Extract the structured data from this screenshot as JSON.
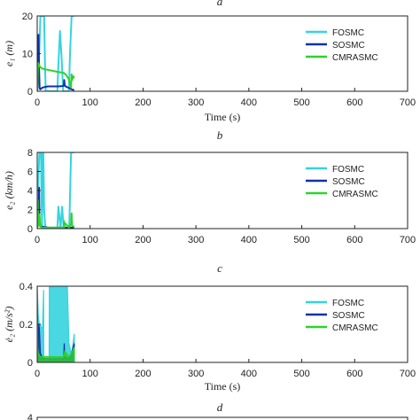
{
  "panel_labels": [
    "a",
    "b",
    "c",
    "d"
  ],
  "legend_labels": [
    "FOSMC",
    "SOSMC",
    "CMRASMC"
  ],
  "colors": {
    "FOSMC": "#35d3df",
    "SOSMC": "#1530a8",
    "CMRASMC": "#2fd22a"
  },
  "chart_data": [
    {
      "type": "line",
      "panel": "a",
      "xlabel": "Time (s)",
      "ylabel": "e₁ (m)",
      "xlim": [
        0,
        7000
      ],
      "ylim": [
        0,
        20
      ],
      "xticks": [
        "0",
        "100",
        "200",
        "300",
        "400",
        "500",
        "600",
        "700"
      ],
      "yticks": [
        "0",
        "10",
        "20"
      ],
      "series": [
        {
          "name": "FOSMC",
          "x": [
            0,
            20,
            40,
            60,
            80,
            100,
            130,
            145,
            160,
            200,
            250,
            300,
            350,
            380,
            400,
            430,
            460,
            490,
            520,
            550,
            580,
            600,
            620,
            650,
            680,
            700
          ],
          "y": [
            0,
            4,
            11,
            20,
            20,
            20,
            20,
            8,
            0,
            0,
            0,
            0,
            0,
            0,
            7,
            16,
            9,
            0,
            0,
            0,
            0,
            0,
            10,
            20,
            20,
            20
          ]
        },
        {
          "name": "SOSMC",
          "x": [
            0,
            10,
            20,
            25,
            35,
            45,
            55,
            100,
            200,
            300,
            400,
            500,
            510,
            520,
            550,
            600,
            650,
            700
          ],
          "y": [
            0,
            3,
            10,
            15,
            6,
            1,
            0.5,
            1,
            1.3,
            1.3,
            1.3,
            1.4,
            3,
            1.5,
            1.2,
            0.9,
            0.5,
            0.3
          ]
        },
        {
          "name": "CMRASMC",
          "x": [
            0,
            5,
            10,
            20,
            50,
            100,
            200,
            300,
            400,
            500,
            550,
            600,
            620,
            640,
            650,
            660,
            680,
            700
          ],
          "y": [
            0,
            2,
            5,
            7.5,
            6.5,
            6,
            5.7,
            5.4,
            5.1,
            4.9,
            4.3,
            3.1,
            2,
            1,
            4.5,
            3,
            4,
            3.5
          ]
        }
      ]
    },
    {
      "type": "line",
      "panel": "b",
      "xlabel": "",
      "ylabel": "e₂ (km/h)",
      "xlim": [
        0,
        7000
      ],
      "ylim": [
        0,
        8
      ],
      "xticks": [
        "0",
        "100",
        "200",
        "300",
        "400",
        "500",
        "600",
        "700"
      ],
      "yticks": [
        "0",
        "2",
        "4",
        "6",
        "8"
      ],
      "series": [
        {
          "name": "FOSMC",
          "x": [
            0,
            10,
            20,
            40,
            60,
            70,
            90,
            105,
            115,
            130,
            150,
            200,
            300,
            380,
            400,
            420,
            440,
            470,
            500,
            600,
            610,
            640,
            680,
            700
          ],
          "y": [
            0,
            2,
            5,
            8,
            8,
            8,
            0,
            8,
            8,
            2,
            0.3,
            0,
            0,
            0,
            2.3,
            1.2,
            0,
            2.3,
            0,
            0,
            1,
            8,
            8,
            8
          ]
        },
        {
          "name": "SOSMC",
          "x": [
            0,
            10,
            20,
            28,
            36,
            44,
            52,
            60,
            100,
            200,
            300,
            400,
            500,
            600,
            700
          ],
          "y": [
            0,
            1.5,
            3,
            1,
            4.3,
            1,
            0.5,
            0.2,
            0.2,
            0.1,
            0.1,
            0.1,
            0.1,
            0.1,
            0.1
          ]
        },
        {
          "name": "CMRASMC",
          "x": [
            0,
            5,
            10,
            18,
            26,
            34,
            42,
            60,
            100,
            200,
            300,
            400,
            500,
            505,
            510,
            520,
            600,
            640,
            650,
            660,
            700
          ],
          "y": [
            0,
            1.5,
            3,
            0.5,
            1.5,
            0.3,
            1.5,
            0.2,
            0.1,
            0.1,
            0.1,
            0.1,
            0.1,
            0.8,
            0.1,
            0.6,
            0.1,
            0.5,
            1.6,
            0.3,
            0.2
          ]
        }
      ]
    },
    {
      "type": "area",
      "panel": "c",
      "xlabel": "Time (s)",
      "ylabel": "ė₂ (m/s²)",
      "xlim": [
        0,
        7000
      ],
      "ylim": [
        0,
        0.4
      ],
      "xticks": [
        "0",
        "100",
        "200",
        "300",
        "400",
        "500",
        "600",
        "700"
      ],
      "yticks": [
        "0",
        "0.2",
        "0.4"
      ],
      "series": [
        {
          "name": "FOSMC",
          "x": [
            0,
            20,
            40,
            60,
            80,
            100,
            120,
            125,
            140,
            200,
            225,
            230,
            300,
            400,
            500,
            570,
            600,
            650,
            700
          ],
          "y": [
            0.4,
            0.25,
            0.2,
            0.2,
            0.18,
            0.18,
            0.38,
            0,
            0,
            0,
            0,
            0.4,
            0.4,
            0.4,
            0.4,
            0.4,
            0.1,
            0.04,
            0.15
          ]
        },
        {
          "name": "SOSMC",
          "x": [
            0,
            20,
            30,
            40,
            60,
            100,
            200,
            300,
            400,
            500,
            510,
            520,
            600,
            650,
            700
          ],
          "y": [
            0.3,
            0.05,
            0.2,
            0.18,
            0.05,
            0.02,
            0.02,
            0.02,
            0.02,
            0.02,
            0.1,
            0.03,
            0.02,
            0.05,
            0.1
          ]
        },
        {
          "name": "CMRASMC",
          "x": [
            0,
            10,
            20,
            40,
            60,
            100,
            200,
            300,
            400,
            500,
            520,
            600,
            650,
            700
          ],
          "y": [
            0.35,
            0.08,
            0.05,
            0.04,
            0.03,
            0.03,
            0.03,
            0.03,
            0.03,
            0.03,
            0.06,
            0.03,
            0.05,
            0.08
          ]
        }
      ]
    },
    {
      "type": "line",
      "panel": "d",
      "xlabel": "",
      "ylabel": "",
      "yticks": [
        "4"
      ],
      "series": []
    }
  ]
}
